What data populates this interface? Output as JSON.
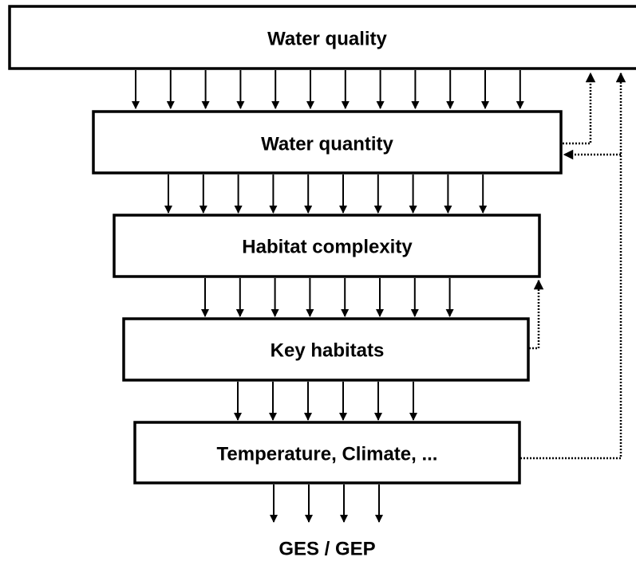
{
  "nodes": [
    {
      "label": "Water quality"
    },
    {
      "label": "Water quantity"
    },
    {
      "label": "Habitat complexity"
    },
    {
      "label": "Key habitats"
    },
    {
      "label": "Temperature, Climate, ..."
    }
  ],
  "output": "GES / GEP"
}
